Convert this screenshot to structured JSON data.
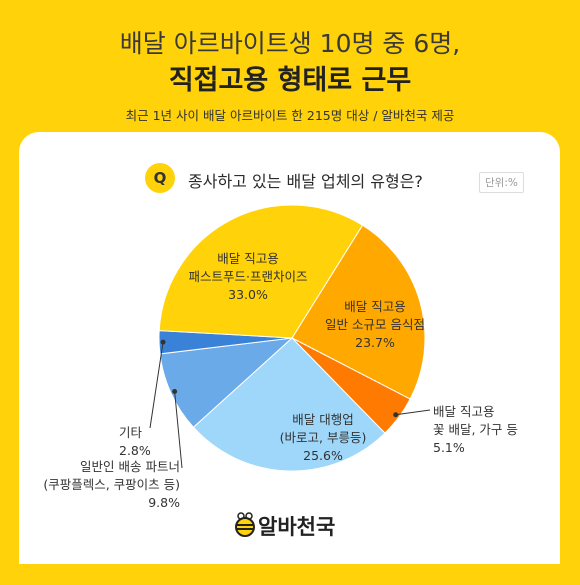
{
  "header": {
    "title_line1": "배달 아르바이트생 10명 중 6명,",
    "title_line2": "직접고용 형태로 근무",
    "subtitle": "최근 1년 사이 배달 아르바이트 한 215명 대상 / 알바천국 제공"
  },
  "question": {
    "marker": "Q",
    "text": "종사하고 있는 배달 업체의 유형은?",
    "unit": "단위:%"
  },
  "chart_data": {
    "type": "pie",
    "title": "종사하고 있는 배달 업체의 유형은?",
    "unit": "%",
    "slices": [
      {
        "label": [
          "배달 직고용",
          "패스트푸드·프랜차이즈"
        ],
        "value": 33.0,
        "value_text": "33.0%",
        "color": "#FFD209"
      },
      {
        "label": [
          "배달 직고용",
          "일반 소규모 음식점"
        ],
        "value": 23.7,
        "value_text": "23.7%",
        "color": "#FFA800"
      },
      {
        "label": [
          "배달 직고용",
          "꽃 배달, 가구 등"
        ],
        "value": 5.1,
        "value_text": "5.1%",
        "color": "#FF7A00"
      },
      {
        "label": [
          "배달 대행업",
          "(바로고, 부릉등)"
        ],
        "value": 25.6,
        "value_text": "25.6%",
        "color": "#9ED7FA"
      },
      {
        "label": [
          "일반인 배송 파트너",
          "(쿠팡플렉스, 쿠팡이츠 등)"
        ],
        "value": 9.8,
        "value_text": "9.8%",
        "color": "#6AAAE8"
      },
      {
        "label": [
          "기타"
        ],
        "value": 2.8,
        "value_text": "2.8%",
        "color": "#3A82D8"
      }
    ]
  },
  "logo": {
    "text": "알바천국"
  }
}
